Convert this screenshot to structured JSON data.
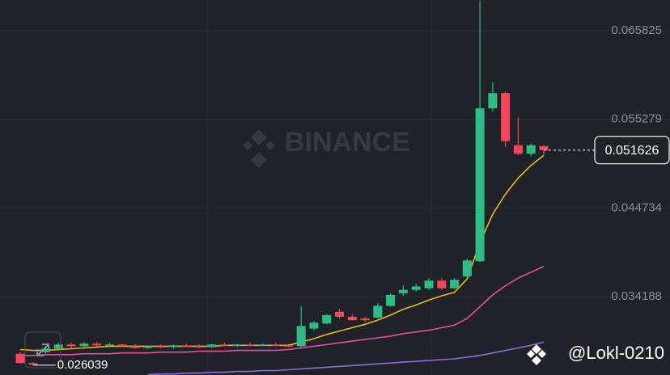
{
  "chart_data": {
    "type": "candlestick",
    "ylim": [
      0.024875,
      0.069478
    ],
    "yticks": [
      0.034188,
      0.044734,
      0.055279,
      0.065825
    ],
    "grid": true,
    "up_color": "#2ebd85",
    "down_color": "#f6465d",
    "open": [
      0.0274,
      0.0263,
      0.0276,
      0.028,
      0.0285,
      0.0283,
      0.0286,
      0.0284,
      0.0285,
      0.0283,
      0.0281,
      0.0283,
      0.0282,
      0.0284,
      0.0283,
      0.0282,
      0.0285,
      0.0284,
      0.0285,
      0.0284,
      0.0285,
      0.0284,
      0.0283,
      0.0304,
      0.031,
      0.0324,
      0.0318,
      0.0316,
      0.0317,
      0.0331,
      0.0346,
      0.035,
      0.0352,
      0.0361,
      0.0352,
      0.0366,
      0.0384,
      0.0566,
      0.0584,
      0.0522,
      0.0512,
      0.0521
    ],
    "high": [
      0.0276,
      0.0264,
      0.0283,
      0.0287,
      0.0287,
      0.0288,
      0.0288,
      0.0287,
      0.0286,
      0.0285,
      0.0284,
      0.0285,
      0.0285,
      0.0286,
      0.0285,
      0.0286,
      0.0287,
      0.0286,
      0.0287,
      0.0286,
      0.0287,
      0.0286,
      0.0331,
      0.0313,
      0.0321,
      0.0327,
      0.0321,
      0.0318,
      0.0334,
      0.0346,
      0.0355,
      0.0357,
      0.0364,
      0.0364,
      0.0364,
      0.0387,
      0.0694,
      0.0597,
      0.0586,
      0.0555,
      0.0524,
      0.0522
    ],
    "low": [
      0.0262,
      0.026039,
      0.0274,
      0.0278,
      0.0281,
      0.0281,
      0.0283,
      0.0282,
      0.0282,
      0.028,
      0.028,
      0.0281,
      0.028,
      0.0282,
      0.0281,
      0.0281,
      0.0283,
      0.0282,
      0.0283,
      0.0283,
      0.0283,
      0.0282,
      0.0282,
      0.0302,
      0.0309,
      0.0316,
      0.0313,
      0.0312,
      0.0316,
      0.033,
      0.0343,
      0.0348,
      0.035,
      0.035,
      0.0351,
      0.0364,
      0.0383,
      0.0562,
      0.052,
      0.051,
      0.0509,
      0.051
    ],
    "close": [
      0.0263,
      0.0261,
      0.028,
      0.0285,
      0.0283,
      0.0286,
      0.0284,
      0.0285,
      0.0283,
      0.0281,
      0.0283,
      0.0282,
      0.0284,
      0.0283,
      0.0282,
      0.0285,
      0.0284,
      0.0285,
      0.0284,
      0.0285,
      0.0284,
      0.0283,
      0.0307,
      0.0311,
      0.032,
      0.0318,
      0.0314,
      0.0314,
      0.0331,
      0.0344,
      0.035,
      0.0354,
      0.0361,
      0.0352,
      0.0362,
      0.0385,
      0.0566,
      0.0584,
      0.0527,
      0.0512,
      0.0522,
      0.051626
    ],
    "ma_lines": [
      {
        "color": "#f0b90b",
        "values": [
          0.0279,
          0.0278,
          0.0278,
          0.0279,
          0.028,
          0.0281,
          0.0282,
          0.0283,
          0.0283,
          0.0283,
          0.0283,
          0.0283,
          0.0283,
          0.0283,
          0.0283,
          0.0283,
          0.0284,
          0.0284,
          0.0284,
          0.0284,
          0.0284,
          0.0284,
          0.0288,
          0.0292,
          0.0297,
          0.0301,
          0.0305,
          0.0309,
          0.0314,
          0.032,
          0.0327,
          0.0332,
          0.0338,
          0.0343,
          0.0347,
          0.0363,
          0.0406,
          0.044,
          0.0464,
          0.0483,
          0.0498,
          0.051
        ]
      },
      {
        "color": "#e84ea0",
        "values": [
          0.0272,
          0.0272,
          0.0273,
          0.0273,
          0.0273,
          0.0274,
          0.0274,
          0.0274,
          0.0275,
          0.0275,
          0.0275,
          0.0276,
          0.0276,
          0.0276,
          0.0277,
          0.0277,
          0.0277,
          0.0278,
          0.0278,
          0.0278,
          0.0278,
          0.0279,
          0.0281,
          0.0283,
          0.0285,
          0.0287,
          0.0289,
          0.0291,
          0.0293,
          0.0295,
          0.0298,
          0.03,
          0.0302,
          0.0305,
          0.0308,
          0.0316,
          0.033,
          0.0344,
          0.0355,
          0.0364,
          0.0371,
          0.0378
        ]
      },
      {
        "color": "#8e6cd8",
        "values": [
          null,
          null,
          null,
          null,
          null,
          null,
          null,
          null,
          null,
          null,
          0.0249,
          0.025,
          0.025,
          0.0251,
          0.0251,
          0.0252,
          0.0252,
          0.0253,
          0.0253,
          0.0254,
          0.0254,
          0.0255,
          0.0256,
          0.0257,
          0.0258,
          0.0259,
          0.026,
          0.0261,
          0.0262,
          0.0263,
          0.0264,
          0.0265,
          0.0266,
          0.0267,
          0.0268,
          0.027,
          0.0272,
          0.0275,
          0.0278,
          0.0281,
          0.0284,
          0.0288
        ]
      }
    ],
    "low_label": 0.026039,
    "last_price": 0.051626,
    "watermark": "BINANCE",
    "user_tag": "@Lokl-0210"
  }
}
